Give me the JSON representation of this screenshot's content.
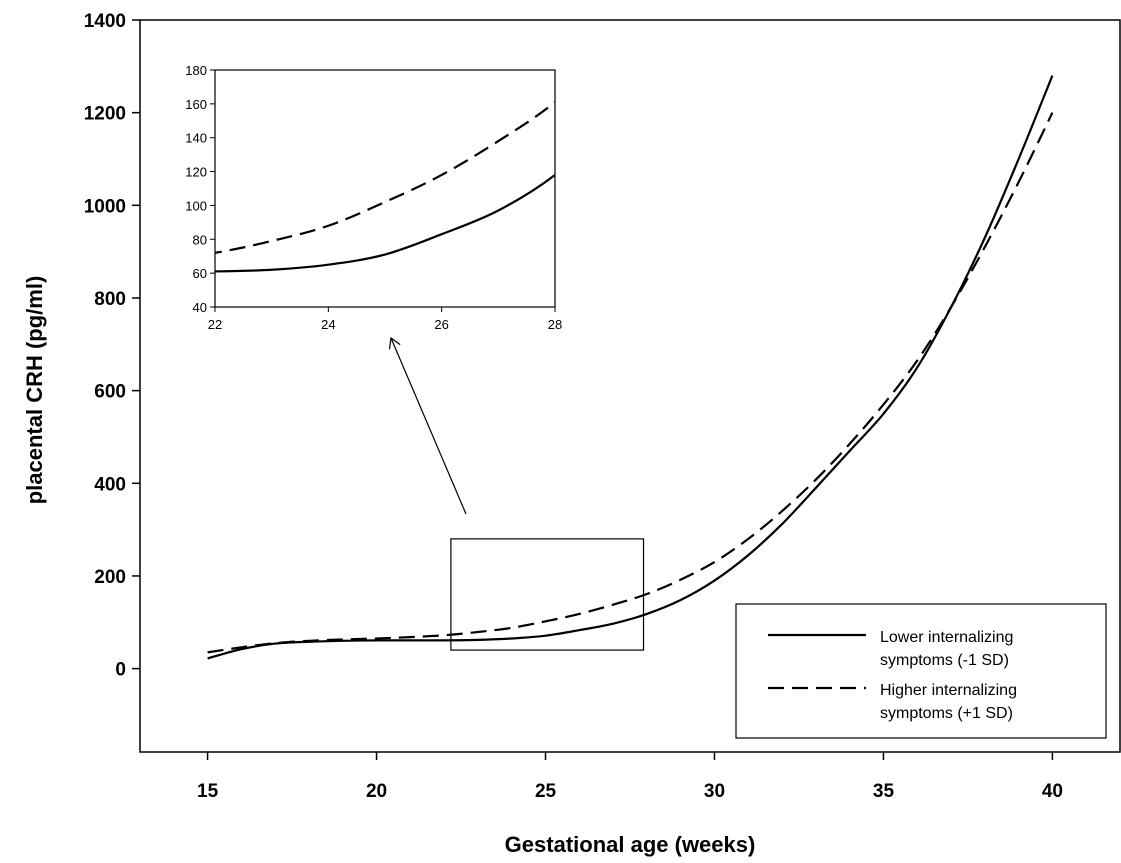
{
  "chart_data": {
    "type": "line",
    "xlabel": "Gestational age (weeks)",
    "ylabel": "placental CRH (pg/ml)",
    "xlim": [
      13,
      42
    ],
    "ylim": [
      -180,
      1400
    ],
    "xticks": [
      15,
      20,
      25,
      30,
      35,
      40
    ],
    "yticks": [
      0,
      200,
      400,
      600,
      800,
      1000,
      1200,
      1400
    ],
    "grid": false,
    "legend_position": "bottom-right",
    "series": [
      {
        "name": "Lower internalizing symptoms (-1 SD)",
        "style": "solid",
        "color": "#000000",
        "points": [
          [
            15,
            22
          ],
          [
            16,
            42
          ],
          [
            17,
            54
          ],
          [
            18,
            58
          ],
          [
            19,
            60
          ],
          [
            20,
            61
          ],
          [
            21,
            61
          ],
          [
            22,
            61
          ],
          [
            23,
            62
          ],
          [
            24,
            65
          ],
          [
            25,
            71
          ],
          [
            26,
            83
          ],
          [
            27,
            97
          ],
          [
            28,
            118
          ],
          [
            29,
            148
          ],
          [
            30,
            190
          ],
          [
            31,
            245
          ],
          [
            32,
            312
          ],
          [
            33,
            390
          ],
          [
            34,
            470
          ],
          [
            35,
            550
          ],
          [
            36,
            650
          ],
          [
            37,
            780
          ],
          [
            38,
            930
          ],
          [
            39,
            1100
          ],
          [
            40,
            1280
          ]
        ]
      },
      {
        "name": "Higher internalizing symptoms (+1 SD)",
        "style": "dashed",
        "color": "#000000",
        "points": [
          [
            15,
            35
          ],
          [
            16,
            46
          ],
          [
            17,
            55
          ],
          [
            18,
            60
          ],
          [
            19,
            63
          ],
          [
            20,
            65
          ],
          [
            21,
            68
          ],
          [
            22,
            72
          ],
          [
            23,
            79
          ],
          [
            24,
            88
          ],
          [
            25,
            102
          ],
          [
            26,
            118
          ],
          [
            27,
            138
          ],
          [
            28,
            161
          ],
          [
            29,
            192
          ],
          [
            30,
            230
          ],
          [
            31,
            280
          ],
          [
            32,
            340
          ],
          [
            33,
            408
          ],
          [
            34,
            485
          ],
          [
            35,
            570
          ],
          [
            36,
            665
          ],
          [
            37,
            780
          ],
          [
            38,
            910
          ],
          [
            39,
            1050
          ],
          [
            40,
            1200
          ]
        ]
      }
    ],
    "inset": {
      "xlim": [
        22,
        28
      ],
      "ylim": [
        40,
        180
      ],
      "xticks": [
        22,
        24,
        26,
        28
      ],
      "yticks": [
        40,
        60,
        80,
        100,
        120,
        140,
        160,
        180
      ],
      "zoom_region": {
        "xlim": [
          22.2,
          27.9
        ],
        "ylim": [
          40,
          280
        ]
      }
    }
  },
  "legend": {
    "series1_line1": "Lower internalizing",
    "series1_line2": "symptoms (-1 SD)",
    "series2_line1": "Higher internalizing",
    "series2_line2": "symptoms (+1 SD)"
  }
}
